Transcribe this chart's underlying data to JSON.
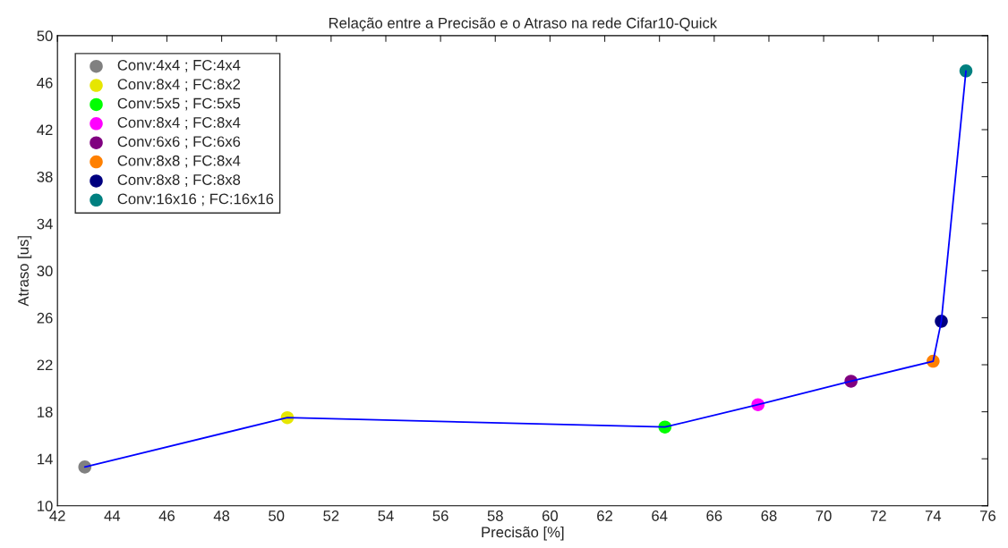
{
  "chart_data": {
    "type": "scatter",
    "title": "Relação entre a Precisão e o Atraso na rede Cifar10-Quick",
    "xlabel": "Precisão [%]",
    "ylabel": "Atraso [us]",
    "xlim": [
      42,
      76
    ],
    "xticks": [
      42,
      44,
      46,
      48,
      50,
      52,
      54,
      56,
      58,
      60,
      62,
      64,
      66,
      68,
      70,
      72,
      74,
      76
    ],
    "ylim": [
      10,
      50
    ],
    "yticks": [
      10,
      14,
      18,
      22,
      26,
      30,
      34,
      38,
      42,
      46,
      50
    ],
    "grid": false,
    "legend": "top left",
    "marker": "circle",
    "series": [
      {
        "type": "line",
        "marker": "none",
        "color": "#0000ff",
        "x": [
          43.0,
          50.4,
          64.2,
          67.6,
          71.0,
          74.0,
          74.3,
          75.2
        ],
        "values": [
          13.3,
          17.5,
          16.7,
          18.6,
          20.6,
          22.3,
          25.7,
          47.0
        ]
      },
      {
        "name": "Conv:4x4 ; FC:4x4",
        "color": "#808080",
        "x": [
          43.0
        ],
        "values": [
          13.3
        ]
      },
      {
        "name": "Conv:8x4 ; FC:8x2",
        "color": "#e6e600",
        "x": [
          50.4
        ],
        "values": [
          17.5
        ]
      },
      {
        "name": "Conv:5x5 ; FC:5x5",
        "color": "#00ff00",
        "x": [
          64.2
        ],
        "values": [
          16.7
        ]
      },
      {
        "name": "Conv:8x4 ; FC:8x4",
        "color": "#ff00ff",
        "x": [
          67.6
        ],
        "values": [
          18.6
        ]
      },
      {
        "name": "Conv:6x6 ; FC:6x6",
        "color": "#800080",
        "x": [
          71.0
        ],
        "values": [
          20.6
        ]
      },
      {
        "name": "Conv:8x8 ; FC:8x4",
        "color": "#ff8000",
        "x": [
          74.0
        ],
        "values": [
          22.3
        ]
      },
      {
        "name": "Conv:8x8 ; FC:8x8",
        "color": "#000080",
        "x": [
          74.3
        ],
        "values": [
          25.7
        ]
      },
      {
        "name": "Conv:16x16 ; FC:16x16",
        "color": "#008080",
        "x": [
          75.2
        ],
        "values": [
          47.0
        ]
      }
    ]
  }
}
